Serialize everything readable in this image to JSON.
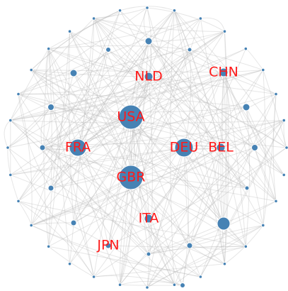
{
  "nodes": [
    {
      "label": "NLD"
    },
    {
      "label": "CHN"
    },
    {
      "label": "USA"
    },
    {
      "label": "FRA"
    },
    {
      "label": "DEU"
    },
    {
      "label": "BEL"
    },
    {
      "label": "GBR"
    },
    {
      "label": "ITA"
    },
    {
      "label": "JPN"
    }
  ]
}
